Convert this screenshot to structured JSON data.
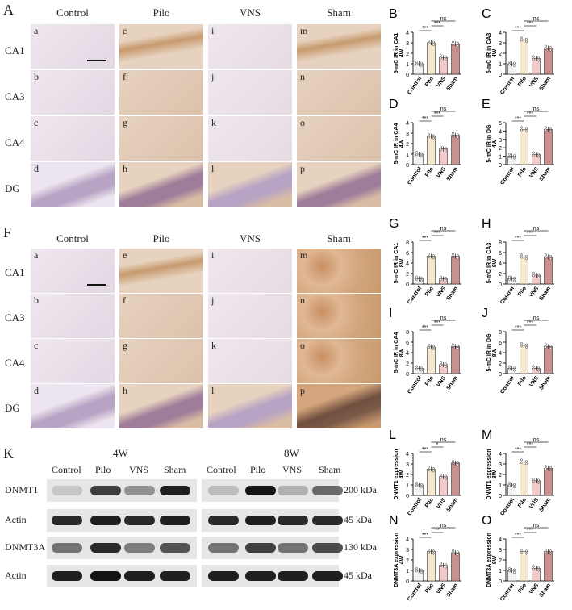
{
  "histology": {
    "groups": [
      "Control",
      "Pilo",
      "VNS",
      "Sham"
    ],
    "regions": [
      "CA1",
      "CA3",
      "CA4",
      "DG"
    ],
    "A": {
      "label": "A",
      "sub": [
        [
          "a",
          "e",
          "i",
          "m"
        ],
        [
          "b",
          "f",
          "j",
          "n"
        ],
        [
          "c",
          "g",
          "k",
          "o"
        ],
        [
          "d",
          "h",
          "l",
          "p"
        ]
      ]
    },
    "F": {
      "label": "F",
      "sub": [
        [
          "a",
          "e",
          "i",
          "m"
        ],
        [
          "b",
          "f",
          "j",
          "n"
        ],
        [
          "c",
          "g",
          "k",
          "o"
        ],
        [
          "d",
          "h",
          "l",
          "p"
        ]
      ]
    }
  },
  "western": {
    "label": "K",
    "time_labels": [
      "4W",
      "8W"
    ],
    "lanes": [
      "Control",
      "Pilo",
      "VNS",
      "Sham"
    ],
    "rows": [
      {
        "name": "DNMT1",
        "kda": "200 kDa"
      },
      {
        "name": "Actin",
        "kda": "45 kDa"
      },
      {
        "name": "DNMT3A",
        "kda": "130 kDa"
      },
      {
        "name": "Actin",
        "kda": "45 kDa"
      }
    ]
  },
  "chart_data": [
    {
      "type": "bar",
      "panel": "B",
      "ylabel": "5-mC IR in CA1",
      "time": "4W",
      "categories": [
        "Control",
        "Pilo",
        "VNS",
        "Sham"
      ],
      "values": [
        1.0,
        3.0,
        1.6,
        2.9
      ],
      "ylim": [
        0,
        4
      ],
      "yticks": [
        0,
        1,
        2,
        3,
        4
      ],
      "sig": [
        "***",
        "***",
        "ns"
      ],
      "colors": [
        "#f2f2f2",
        "#f6e7cf",
        "#f3c9c9",
        "#c9908e"
      ]
    },
    {
      "type": "bar",
      "panel": "C",
      "ylabel": "5-mC IR in CA3",
      "time": "4W",
      "categories": [
        "Control",
        "Pilo",
        "VNS",
        "Sham"
      ],
      "values": [
        1.0,
        3.3,
        1.5,
        2.5
      ],
      "ylim": [
        0,
        4
      ],
      "yticks": [
        0,
        1,
        2,
        3,
        4
      ],
      "sig": [
        "***",
        "***",
        "ns"
      ],
      "colors": [
        "#f2f2f2",
        "#f6e7cf",
        "#f3c9c9",
        "#c9908e"
      ]
    },
    {
      "type": "bar",
      "panel": "D",
      "ylabel": "5-mC IR in CA4",
      "time": "4W",
      "categories": [
        "Control",
        "Pilo",
        "VNS",
        "Sham"
      ],
      "values": [
        1.0,
        2.7,
        1.5,
        2.8
      ],
      "ylim": [
        0,
        4
      ],
      "yticks": [
        0,
        1,
        2,
        3,
        4
      ],
      "sig": [
        "***",
        "***",
        "ns"
      ],
      "colors": [
        "#f2f2f2",
        "#f6e7cf",
        "#f3c9c9",
        "#c9908e"
      ]
    },
    {
      "type": "bar",
      "panel": "E",
      "ylabel": "5-mC IR in DG",
      "time": "4W",
      "categories": [
        "Control",
        "Pilo",
        "VNS",
        "Sham"
      ],
      "values": [
        1.0,
        4.2,
        1.2,
        4.2
      ],
      "ylim": [
        0,
        5
      ],
      "yticks": [
        0,
        1,
        2,
        3,
        4,
        5
      ],
      "sig": [
        "***",
        "***",
        "ns"
      ],
      "colors": [
        "#f2f2f2",
        "#f6e7cf",
        "#f3c9c9",
        "#c9908e"
      ]
    },
    {
      "type": "bar",
      "panel": "G",
      "ylabel": "5-mC IR in CA1",
      "time": "8W",
      "categories": [
        "Control",
        "Pilo",
        "VNS",
        "Sham"
      ],
      "values": [
        1.0,
        5.3,
        1.0,
        5.3
      ],
      "ylim": [
        0,
        8
      ],
      "yticks": [
        0,
        2,
        4,
        6,
        8
      ],
      "sig": [
        "***",
        "***",
        "ns"
      ],
      "colors": [
        "#f2f2f2",
        "#f6e7cf",
        "#f3c9c9",
        "#c9908e"
      ]
    },
    {
      "type": "bar",
      "panel": "H",
      "ylabel": "5-mC IR in CA3",
      "time": "8W",
      "categories": [
        "Control",
        "Pilo",
        "VNS",
        "Sham"
      ],
      "values": [
        1.0,
        5.2,
        1.7,
        5.2
      ],
      "ylim": [
        0,
        8
      ],
      "yticks": [
        0,
        2,
        4,
        6,
        8
      ],
      "sig": [
        "***",
        "***",
        "ns"
      ],
      "colors": [
        "#f2f2f2",
        "#f6e7cf",
        "#f3c9c9",
        "#c9908e"
      ]
    },
    {
      "type": "bar",
      "panel": "I",
      "ylabel": "5-mC IR in CA4",
      "time": "8W",
      "categories": [
        "Control",
        "Pilo",
        "VNS",
        "Sham"
      ],
      "values": [
        1.0,
        5.1,
        1.7,
        5.2
      ],
      "ylim": [
        0,
        8
      ],
      "yticks": [
        0,
        2,
        4,
        6,
        8
      ],
      "sig": [
        "***",
        "***",
        "ns"
      ],
      "colors": [
        "#f2f2f2",
        "#f6e7cf",
        "#f3c9c9",
        "#c9908e"
      ]
    },
    {
      "type": "bar",
      "panel": "J",
      "ylabel": "5-mC IR in DG",
      "time": "8W",
      "categories": [
        "Control",
        "Pilo",
        "VNS",
        "Sham"
      ],
      "values": [
        1.0,
        5.4,
        1.0,
        5.2
      ],
      "ylim": [
        0,
        8
      ],
      "yticks": [
        0,
        2,
        4,
        6,
        8
      ],
      "sig": [
        "***",
        "***",
        "ns"
      ],
      "colors": [
        "#f2f2f2",
        "#f6e7cf",
        "#f3c9c9",
        "#c9908e"
      ]
    },
    {
      "type": "bar",
      "panel": "L",
      "ylabel": "DNMT1 expression",
      "time": "4W",
      "categories": [
        "Control",
        "Pilo",
        "VNS",
        "Sham"
      ],
      "values": [
        1.0,
        2.5,
        1.8,
        3.1
      ],
      "ylim": [
        0,
        4
      ],
      "yticks": [
        0,
        1,
        2,
        3,
        4
      ],
      "sig": [
        "***",
        "*",
        "ns"
      ],
      "colors": [
        "#f2f2f2",
        "#f6e7cf",
        "#f3c9c9",
        "#c9908e"
      ]
    },
    {
      "type": "bar",
      "panel": "M",
      "ylabel": "DNMT1 expression",
      "time": "8W",
      "categories": [
        "Control",
        "Pilo",
        "VNS",
        "Sham"
      ],
      "values": [
        1.0,
        3.2,
        1.4,
        2.6
      ],
      "ylim": [
        0,
        4
      ],
      "yticks": [
        0,
        1,
        2,
        3,
        4
      ],
      "sig": [
        "***",
        "***",
        "ns"
      ],
      "colors": [
        "#f2f2f2",
        "#f6e7cf",
        "#f3c9c9",
        "#c9908e"
      ]
    },
    {
      "type": "bar",
      "panel": "N",
      "ylabel": "DNMT3A expression",
      "time": "4W",
      "categories": [
        "Control",
        "Pilo",
        "VNS",
        "Sham"
      ],
      "values": [
        1.0,
        2.8,
        1.5,
        2.7
      ],
      "ylim": [
        0,
        4
      ],
      "yticks": [
        0,
        1,
        2,
        3,
        4
      ],
      "sig": [
        "***",
        "**",
        "ns"
      ],
      "colors": [
        "#f2f2f2",
        "#f6e7cf",
        "#f3c9c9",
        "#c9908e"
      ]
    },
    {
      "type": "bar",
      "panel": "O",
      "ylabel": "DNMT3A expression",
      "time": "8W",
      "categories": [
        "Control",
        "Pilo",
        "VNS",
        "Sham"
      ],
      "values": [
        1.0,
        2.8,
        1.2,
        2.8
      ],
      "ylim": [
        0,
        4
      ],
      "yticks": [
        0,
        1,
        2,
        3,
        4
      ],
      "sig": [
        "***",
        "***",
        "ns"
      ],
      "colors": [
        "#f2f2f2",
        "#f6e7cf",
        "#f3c9c9",
        "#c9908e"
      ]
    }
  ],
  "palette": {
    "control_tissue": "#ece3ec",
    "stain_light": "#e6d2bf",
    "stain_dark": "#c79a6e",
    "dg_band": "#9e7d9a"
  }
}
